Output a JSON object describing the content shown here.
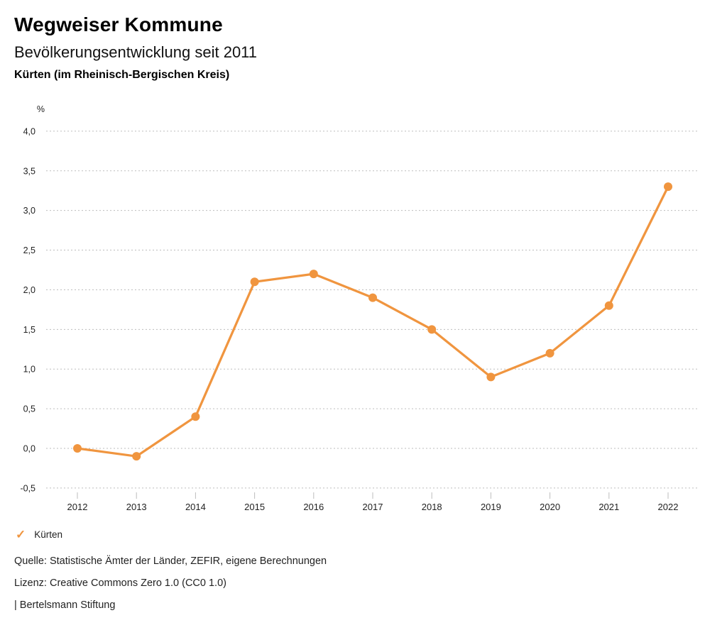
{
  "header": {
    "title": "Wegweiser Kommune",
    "subtitle": "Bevölkerungsentwicklung seit 2011",
    "region": "Kürten (im Rheinisch-Bergischen Kreis)"
  },
  "chart_data": {
    "type": "line",
    "title": "Bevölkerungsentwicklung seit 2011",
    "subtitle": "Kürten (im Rheinisch-Bergischen Kreis)",
    "ylabel": "%",
    "xlabel": "",
    "categories": [
      "2012",
      "2013",
      "2014",
      "2015",
      "2016",
      "2017",
      "2018",
      "2019",
      "2020",
      "2021",
      "2022"
    ],
    "series": [
      {
        "name": "Kürten",
        "color": "#F0953F",
        "values": [
          0.0,
          -0.1,
          0.4,
          2.1,
          2.2,
          1.9,
          1.5,
          0.9,
          1.2,
          1.8,
          3.3
        ]
      }
    ],
    "ylim": [
      -0.5,
      4.0
    ],
    "ytick_step": 0.5,
    "ytick_labels": [
      "4,0",
      "3,5",
      "3,0",
      "2,5",
      "2,0",
      "1,5",
      "1,0",
      "0,5",
      "0,0",
      "-0,5"
    ],
    "grid": "horizontal-dotted",
    "legend_position": "bottom-left"
  },
  "legend": {
    "items": [
      {
        "label": "Kürten",
        "check_icon": "check-icon",
        "color": "#F0953F",
        "checked": true
      }
    ]
  },
  "footer": {
    "source": "Quelle: Statistische Ämter der Länder, ZEFIR, eigene Berechnungen",
    "license": "Lizenz: Creative Commons Zero 1.0 (CC0 1.0)",
    "attribution": "| Bertelsmann Stiftung"
  },
  "colors": {
    "series": "#F0953F",
    "grid": "#BDBDBD",
    "tick": "#BDBDBD",
    "axis_text": "#222222",
    "background": "#FFFFFF"
  }
}
